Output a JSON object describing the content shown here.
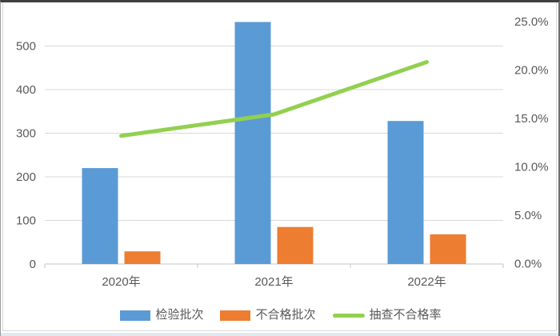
{
  "chart_data": {
    "type": "bar",
    "subtype": "combo-bar-line-dual-axis",
    "categories": [
      "2020年",
      "2021年",
      "2022年"
    ],
    "bar_series": [
      {
        "name": "检验批次",
        "color": "#5B9BD5",
        "values": [
          220,
          555,
          328
        ]
      },
      {
        "name": "不合格批次",
        "color": "#ED7D31",
        "values": [
          29,
          85,
          68
        ]
      }
    ],
    "line_series": {
      "name": "抽查不合格率",
      "color": "#92D050",
      "values_pct": [
        13.2,
        15.4,
        20.8
      ]
    },
    "title": "",
    "xlabel": "",
    "ylabel_left": "",
    "ylabel_right": "",
    "left_axis": {
      "min": 0,
      "max": 550,
      "major_unit": 100,
      "ticks": [
        "0",
        "100",
        "200",
        "300",
        "400",
        "500"
      ]
    },
    "right_axis": {
      "min": 0,
      "max": 25,
      "major_unit": 5,
      "ticks": [
        "0.0%",
        "5.0%",
        "10.0%",
        "15.0%",
        "20.0%",
        "25.0%"
      ]
    },
    "grid": true,
    "legend_position": "bottom"
  },
  "colors": {
    "gridline": "#D9D9D9",
    "axis_line": "#C6C6C6",
    "tick_text": "#595959",
    "background": "#FFFFFF"
  }
}
